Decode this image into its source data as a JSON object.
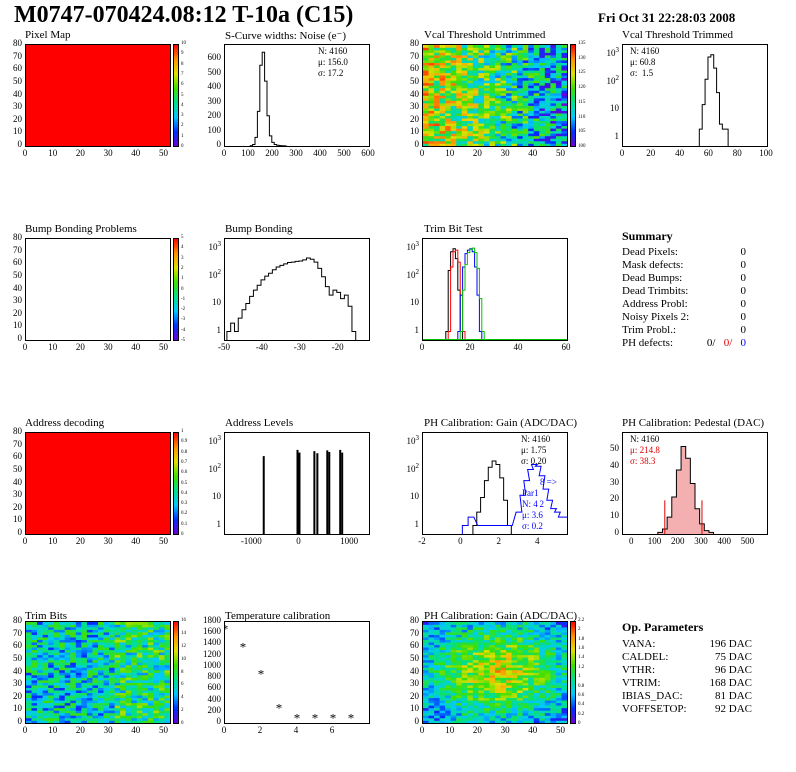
{
  "header": {
    "title": "M0747-070424.08:12 T-10a (C15)",
    "date": "Fri Oct 31 22:28:03 2008"
  },
  "panels": {
    "pixel_map": {
      "title": "Pixel Map"
    },
    "scurve": {
      "title": "S-Curve widths: Noise (e⁻)",
      "stats": [
        "N: 4160",
        "μ: 156.0",
        "σ: 17.2"
      ]
    },
    "vcal_untrimmed": {
      "title": "Vcal Threshold Untrimmed"
    },
    "vcal_trimmed": {
      "title": "Vcal Threshold Trimmed",
      "stats": [
        "N: 4160",
        "μ: 60.8",
        "σ:  1.5"
      ]
    },
    "bump_problems": {
      "title": "Bump Bonding Problems"
    },
    "bump_bonding": {
      "title": "Bump Bonding"
    },
    "trim_bit_test": {
      "title": "Trim Bit Test"
    },
    "address_decoding": {
      "title": "Address decoding"
    },
    "address_levels": {
      "title": "Address Levels"
    },
    "ph_gain": {
      "title": "PH Calibration: Gain (ADC/DAC)",
      "stats": [
        "N: 4160",
        "μ: 1.75",
        "σ: 0.20"
      ],
      "blue_stats": [
        "Par1",
        "N: 4 2",
        "μ: 3.6",
        "σ: 0.2"
      ],
      "blue_arrow": "8 =>"
    },
    "ph_pedestal": {
      "title": "PH Calibration: Pedestal (DAC)",
      "stats": [
        "N: 4160"
      ],
      "red_stats": [
        "μ: 214.8",
        "σ: 38.3"
      ]
    },
    "trim_bits": {
      "title": "Trim Bits"
    },
    "temperature": {
      "title": "Temperature calibration"
    },
    "ph_gain_map": {
      "title": "PH Calibration: Gain (ADC/DAC)"
    }
  },
  "summary": {
    "title": "Summary",
    "rows": [
      {
        "label": "Dead Pixels:",
        "value": "0"
      },
      {
        "label": "Mask defects:",
        "value": "0"
      },
      {
        "label": "Dead Bumps:",
        "value": "0"
      },
      {
        "label": "Dead Trimbits:",
        "value": "0"
      },
      {
        "label": "Address Probl:",
        "value": "0"
      },
      {
        "label": "Noisy Pixels 2:",
        "value": "0"
      },
      {
        "label": "Trim Probl.:",
        "value": "0"
      }
    ],
    "ph_defects": {
      "label": "PH defects:",
      "black": "0/",
      "red": "0/",
      "blue": "0"
    }
  },
  "op_params": {
    "title": "Op. Parameters",
    "rows": [
      {
        "label": "VANA:",
        "value": "196 DAC"
      },
      {
        "label": "CALDEL:",
        "value": "75 DAC"
      },
      {
        "label": "VTHR:",
        "value": "96 DAC"
      },
      {
        "label": "VTRIM:",
        "value": "168 DAC"
      },
      {
        "label": "IBIAS_DAC:",
        "value": "81 DAC"
      },
      {
        "label": "VOFFSETOP:",
        "value": "92 DAC"
      }
    ]
  },
  "chart_data": [
    {
      "type": "heatmap",
      "title": "Pixel Map",
      "xlim": [
        0,
        52
      ],
      "ylim": [
        0,
        80
      ],
      "x_ticks": [
        0,
        10,
        20,
        30,
        40,
        50
      ],
      "y_ticks": [
        0,
        10,
        20,
        30,
        40,
        50,
        60,
        70,
        80
      ],
      "z_ticks": [
        0,
        1,
        2,
        3,
        4,
        5,
        6,
        7,
        8,
        9,
        10
      ],
      "uniform_value": 10
    },
    {
      "type": "bar",
      "title": "S-Curve widths: Noise (e⁻)",
      "xlim": [
        0,
        600
      ],
      "ylim": [
        0,
        700
      ],
      "x_ticks": [
        0,
        100,
        200,
        300,
        400,
        500,
        600
      ],
      "y_ticks": [
        0,
        100,
        200,
        300,
        400,
        500,
        600
      ],
      "x": [
        110,
        120,
        130,
        140,
        150,
        160,
        170,
        180,
        190,
        200,
        210,
        220,
        230,
        240,
        250
      ],
      "values": [
        2,
        10,
        60,
        240,
        560,
        650,
        450,
        210,
        70,
        25,
        10,
        5,
        3,
        2,
        1
      ]
    },
    {
      "type": "heatmap",
      "title": "Vcal Threshold Untrimmed",
      "xlim": [
        0,
        52
      ],
      "ylim": [
        0,
        80
      ],
      "x_ticks": [
        0,
        10,
        20,
        30,
        40,
        50
      ],
      "y_ticks": [
        0,
        10,
        20,
        30,
        40,
        50,
        60,
        70,
        80
      ],
      "z_ticks": [
        100,
        105,
        110,
        115,
        120,
        125,
        130,
        135
      ],
      "z_range": [
        98,
        138
      ]
    },
    {
      "type": "bar",
      "title": "Vcal Threshold Trimmed",
      "log_y": true,
      "xlim": [
        0,
        100
      ],
      "ylim": [
        0.5,
        2000
      ],
      "x_ticks": [
        0,
        20,
        40,
        60,
        80,
        100
      ],
      "y_ticks": [
        1,
        10,
        100,
        1000
      ],
      "x": [
        54,
        56,
        58,
        60,
        62,
        64,
        66,
        68,
        70,
        72
      ],
      "values": [
        2,
        15,
        120,
        750,
        900,
        300,
        40,
        3,
        2,
        2
      ]
    },
    {
      "type": "heatmap",
      "title": "Bump Bonding Problems",
      "xlim": [
        0,
        52
      ],
      "ylim": [
        0,
        80
      ],
      "x_ticks": [
        0,
        10,
        20,
        30,
        40,
        50
      ],
      "y_ticks": [
        0,
        10,
        20,
        30,
        40,
        50,
        60,
        70,
        80
      ],
      "z_ticks": [
        -5,
        -4,
        -3,
        -2,
        -1,
        0,
        1,
        2,
        3,
        4,
        5
      ],
      "uniform_value": null
    },
    {
      "type": "bar",
      "title": "Bump Bonding",
      "log_y": true,
      "xlim": [
        -50,
        -12
      ],
      "ylim": [
        0.5,
        2000
      ],
      "x_ticks": [
        -50,
        -40,
        -30,
        -20
      ],
      "y_ticks": [
        1,
        10,
        100,
        1000
      ],
      "x": [
        -49,
        -48,
        -47,
        -46,
        -45,
        -44,
        -43,
        -42,
        -41,
        -40,
        -39,
        -38,
        -37,
        -36,
        -35,
        -34,
        -33,
        -32,
        -31,
        -30,
        -29,
        -28,
        -27,
        -26,
        -25,
        -24,
        -23,
        -22,
        -21,
        -20,
        -19,
        -18,
        -17,
        -16
      ],
      "values": [
        1,
        2,
        1,
        3,
        6,
        10,
        18,
        30,
        45,
        70,
        95,
        120,
        160,
        200,
        230,
        260,
        290,
        300,
        320,
        330,
        360,
        420,
        380,
        300,
        180,
        90,
        40,
        20,
        30,
        25,
        15,
        20,
        8,
        1
      ]
    },
    {
      "type": "line",
      "title": "Trim Bit Test",
      "log_y": true,
      "xlim": [
        0,
        60
      ],
      "ylim": [
        0.5,
        2000
      ],
      "x_ticks": [
        0,
        20,
        40,
        60
      ],
      "y_ticks": [
        1,
        10,
        100,
        1000
      ],
      "series": [
        {
          "color": "#000000",
          "x": [
            10,
            11,
            12,
            13,
            14,
            15,
            16
          ],
          "values": [
            1,
            150,
            700,
            900,
            400,
            30,
            1
          ]
        },
        {
          "color": "#ff0000",
          "x": [
            11,
            12,
            13,
            14,
            15,
            16,
            17
          ],
          "values": [
            1,
            200,
            700,
            800,
            300,
            20,
            1
          ]
        },
        {
          "color": "#0000ff",
          "x": [
            15,
            16,
            17,
            18,
            19,
            20,
            21,
            22,
            23,
            24
          ],
          "values": [
            1,
            20,
            200,
            600,
            800,
            900,
            700,
            200,
            20,
            1
          ]
        },
        {
          "color": "#00c000",
          "x": [
            16,
            17,
            18,
            19,
            20,
            21,
            22,
            23,
            24,
            25
          ],
          "values": [
            1,
            30,
            250,
            650,
            850,
            950,
            650,
            180,
            15,
            1
          ]
        }
      ]
    },
    {
      "type": "heatmap",
      "title": "Address decoding",
      "xlim": [
        0,
        52
      ],
      "ylim": [
        0,
        80
      ],
      "x_ticks": [
        0,
        10,
        20,
        30,
        40,
        50
      ],
      "y_ticks": [
        0,
        10,
        20,
        30,
        40,
        50,
        60,
        70,
        80
      ],
      "z_ticks": [
        0,
        0.1,
        0.2,
        0.3,
        0.4,
        0.5,
        0.6,
        0.7,
        0.8,
        0.9,
        1
      ],
      "uniform_value": 1
    },
    {
      "type": "bar",
      "title": "Address Levels",
      "log_y": true,
      "xlim": [
        -1500,
        1400
      ],
      "ylim": [
        0.5,
        2000
      ],
      "x_ticks": [
        -1000,
        0,
        1000
      ],
      "y_ticks": [
        1,
        10,
        100,
        1000
      ],
      "x": [
        -720,
        -40,
        0,
        300,
        360,
        560,
        600,
        820,
        860
      ],
      "values": [
        300,
        500,
        400,
        450,
        380,
        480,
        420,
        500,
        400
      ]
    },
    {
      "type": "line",
      "title": "PH Calibration: Gain (ADC/DAC)",
      "log_y": true,
      "xlim": [
        -2,
        5.5
      ],
      "ylim": [
        0.5,
        2000
      ],
      "x_ticks": [
        -2,
        0,
        2,
        4
      ],
      "y_ticks": [
        1,
        10,
        100,
        1000
      ],
      "series": [
        {
          "color": "#000000",
          "x": [
            0.7,
            0.9,
            1.1,
            1.3,
            1.5,
            1.7,
            1.9,
            2.1,
            2.3,
            2.5
          ],
          "values": [
            1,
            3,
            10,
            40,
            120,
            200,
            150,
            50,
            8,
            1
          ]
        },
        {
          "color": "#0000ff",
          "x": [
            0.2,
            0.5,
            1.0,
            2.5,
            3.0,
            3.2,
            3.4,
            3.6,
            3.8,
            4.0,
            4.2,
            4.4,
            4.6,
            4.8,
            5.0,
            5.2,
            5.4
          ],
          "values": [
            1,
            2,
            1,
            1,
            3,
            12,
            40,
            100,
            150,
            130,
            60,
            20,
            8,
            4,
            3,
            2,
            2
          ]
        }
      ]
    },
    {
      "type": "bar",
      "title": "PH Calibration: Pedestal (DAC)",
      "xlim": [
        -40,
        580
      ],
      "ylim": [
        0,
        60
      ],
      "x_ticks": [
        0,
        100,
        200,
        300,
        400,
        500
      ],
      "y_ticks": [
        0,
        10,
        20,
        30,
        40,
        50
      ],
      "x": [
        120,
        140,
        160,
        180,
        200,
        220,
        240,
        260,
        280,
        300,
        320,
        340
      ],
      "values": [
        1,
        3,
        10,
        22,
        38,
        52,
        45,
        30,
        15,
        6,
        2,
        1
      ]
    },
    {
      "type": "heatmap",
      "title": "Trim Bits",
      "xlim": [
        0,
        52
      ],
      "ylim": [
        0,
        80
      ],
      "x_ticks": [
        0,
        10,
        20,
        30,
        40,
        50
      ],
      "y_ticks": [
        0,
        10,
        20,
        30,
        40,
        50,
        60,
        70,
        80
      ],
      "z_ticks": [
        0,
        2,
        4,
        6,
        8,
        10,
        12,
        14,
        16
      ]
    },
    {
      "type": "scatter",
      "title": "Temperature calibration",
      "xlim": [
        0,
        8
      ],
      "ylim": [
        0,
        1800
      ],
      "x_ticks": [
        0,
        2,
        4,
        6
      ],
      "y_ticks": [
        0,
        200,
        400,
        600,
        800,
        1000,
        1200,
        1400,
        1600,
        1800
      ],
      "x": [
        0,
        1,
        2,
        3,
        4,
        5,
        6,
        7
      ],
      "values": [
        1680,
        1360,
        880,
        280,
        100,
        100,
        100,
        100
      ]
    },
    {
      "type": "heatmap",
      "title": "PH Calibration: Gain (ADC/DAC)",
      "xlim": [
        0,
        52
      ],
      "ylim": [
        0,
        80
      ],
      "x_ticks": [
        0,
        10,
        20,
        30,
        40,
        50
      ],
      "y_ticks": [
        0,
        10,
        20,
        30,
        40,
        50,
        60,
        70,
        80
      ],
      "z_ticks": [
        0,
        0.2,
        0.4,
        0.6,
        0.8,
        1,
        1.2,
        1.4,
        1.6,
        1.8,
        2,
        2.2
      ]
    }
  ]
}
